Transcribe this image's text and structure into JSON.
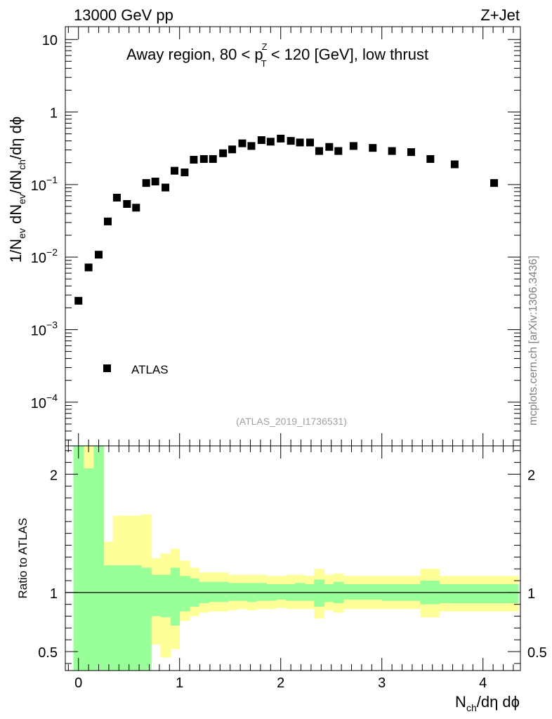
{
  "header": {
    "left": "13000 GeV pp",
    "right": "Z+Jet"
  },
  "watermark": "mcplots.cern.ch [arXiv:1306.3436]",
  "chart_data": [
    {
      "type": "scatter",
      "panel": "main",
      "title": "Away region, 80 < p_T^Z < 120 [GeV], low thrust",
      "title_parts": {
        "pre": "Away region, 80 < p",
        "sup": "Z",
        "sub": "T",
        "post": " < 120 [GeV], low thrust"
      },
      "ylabel": "1/N_ev dN_ev/dN_ch/dη dϕ",
      "ylabel_parts": {
        "a": "1/N",
        "a_sub": "ev",
        "b": " dN",
        "b_sub": "ev",
        "c": "/dN",
        "c_sub": "ch",
        "d": "/dη dϕ"
      },
      "yscale": "log",
      "ylim": [
        2.5e-05,
        15
      ],
      "xlim": [
        -0.13,
        4.37
      ],
      "y_ticks": [
        {
          "value": 10,
          "label": "10"
        },
        {
          "value": 1,
          "label": "1"
        },
        {
          "value": 0.1,
          "base": "10",
          "exp": "−1"
        },
        {
          "value": 0.01,
          "base": "10",
          "exp": "−2"
        },
        {
          "value": 0.001,
          "base": "10",
          "exp": "−3"
        },
        {
          "value": 0.0001,
          "base": "10",
          "exp": "−4"
        }
      ],
      "legend": {
        "label": "ATLAS",
        "position": "bottom-left"
      },
      "annotation": "(ATLAS_2019_I1736531)",
      "series": [
        {
          "name": "ATLAS",
          "marker": "square",
          "x": [
            0.0,
            0.1,
            0.2,
            0.29,
            0.38,
            0.48,
            0.57,
            0.67,
            0.76,
            0.86,
            0.95,
            1.05,
            1.14,
            1.24,
            1.33,
            1.43,
            1.52,
            1.62,
            1.71,
            1.81,
            1.9,
            2.0,
            2.1,
            2.19,
            2.29,
            2.38,
            2.48,
            2.57,
            2.72,
            2.91,
            3.1,
            3.29,
            3.48,
            3.72,
            4.11
          ],
          "y": [
            0.0025,
            0.0072,
            0.0108,
            0.031,
            0.066,
            0.054,
            0.048,
            0.105,
            0.11,
            0.091,
            0.155,
            0.147,
            0.22,
            0.225,
            0.225,
            0.27,
            0.305,
            0.37,
            0.34,
            0.41,
            0.39,
            0.43,
            0.4,
            0.38,
            0.38,
            0.29,
            0.33,
            0.29,
            0.34,
            0.32,
            0.29,
            0.28,
            0.225,
            0.19,
            0.105
          ]
        }
      ]
    },
    {
      "type": "area",
      "panel": "ratio",
      "ylabel": "Ratio to ATLAS",
      "xlabel": "N_ch/dη dϕ",
      "xlabel_parts": {
        "a": "N",
        "a_sub": "ch",
        "b": "/dη dϕ"
      },
      "ylim": [
        0.34,
        2.24
      ],
      "xlim": [
        -0.13,
        4.37
      ],
      "reference_line": 1,
      "x_ticks": [
        0,
        1,
        2,
        3,
        4
      ],
      "y_ticks": [
        0.5,
        1,
        2
      ],
      "y_tick_labels": [
        "0.5",
        "1",
        "2"
      ],
      "bands": {
        "bin_edges": [
          -0.05,
          0.05,
          0.15,
          0.25,
          0.34,
          0.43,
          0.53,
          0.62,
          0.72,
          0.81,
          0.91,
          1.0,
          1.1,
          1.19,
          1.29,
          1.38,
          1.48,
          1.57,
          1.67,
          1.76,
          1.86,
          1.95,
          2.05,
          2.14,
          2.24,
          2.33,
          2.43,
          2.52,
          2.62,
          2.81,
          3.0,
          3.19,
          3.38,
          3.57,
          3.86,
          4.35
        ],
        "inner": {
          "name": "stat",
          "color": "#99ff99",
          "lo": [
            0.34,
            0.34,
            0.34,
            0.34,
            0.34,
            0.34,
            0.34,
            0.34,
            0.8,
            0.79,
            0.72,
            0.84,
            0.88,
            0.91,
            0.92,
            0.92,
            0.93,
            0.93,
            0.92,
            0.93,
            0.93,
            0.94,
            0.93,
            0.93,
            0.93,
            0.88,
            0.92,
            0.91,
            0.94,
            0.94,
            0.93,
            0.93,
            0.9,
            0.91,
            0.91
          ],
          "hi": [
            2.24,
            2.05,
            2.24,
            1.23,
            1.23,
            1.23,
            1.23,
            1.21,
            1.15,
            1.15,
            1.21,
            1.14,
            1.12,
            1.09,
            1.09,
            1.09,
            1.08,
            1.08,
            1.08,
            1.08,
            1.07,
            1.07,
            1.07,
            1.08,
            1.07,
            1.11,
            1.07,
            1.09,
            1.07,
            1.07,
            1.07,
            1.07,
            1.1,
            1.07,
            1.07
          ]
        },
        "outer": {
          "name": "total",
          "color": "#ffff99",
          "lo": [
            0.34,
            0.34,
            0.34,
            0.34,
            0.34,
            0.34,
            0.34,
            0.34,
            0.56,
            0.45,
            0.52,
            0.76,
            0.8,
            0.83,
            0.84,
            0.84,
            0.85,
            0.86,
            0.85,
            0.86,
            0.86,
            0.87,
            0.86,
            0.86,
            0.86,
            0.78,
            0.85,
            0.83,
            0.86,
            0.86,
            0.86,
            0.86,
            0.79,
            0.84,
            0.84
          ],
          "hi": [
            2.24,
            2.24,
            2.24,
            1.43,
            1.65,
            1.65,
            1.65,
            1.66,
            1.29,
            1.33,
            1.37,
            1.27,
            1.21,
            1.17,
            1.17,
            1.17,
            1.15,
            1.15,
            1.15,
            1.15,
            1.14,
            1.14,
            1.15,
            1.15,
            1.14,
            1.2,
            1.15,
            1.16,
            1.14,
            1.14,
            1.14,
            1.14,
            1.2,
            1.14,
            1.14
          ]
        }
      }
    }
  ]
}
